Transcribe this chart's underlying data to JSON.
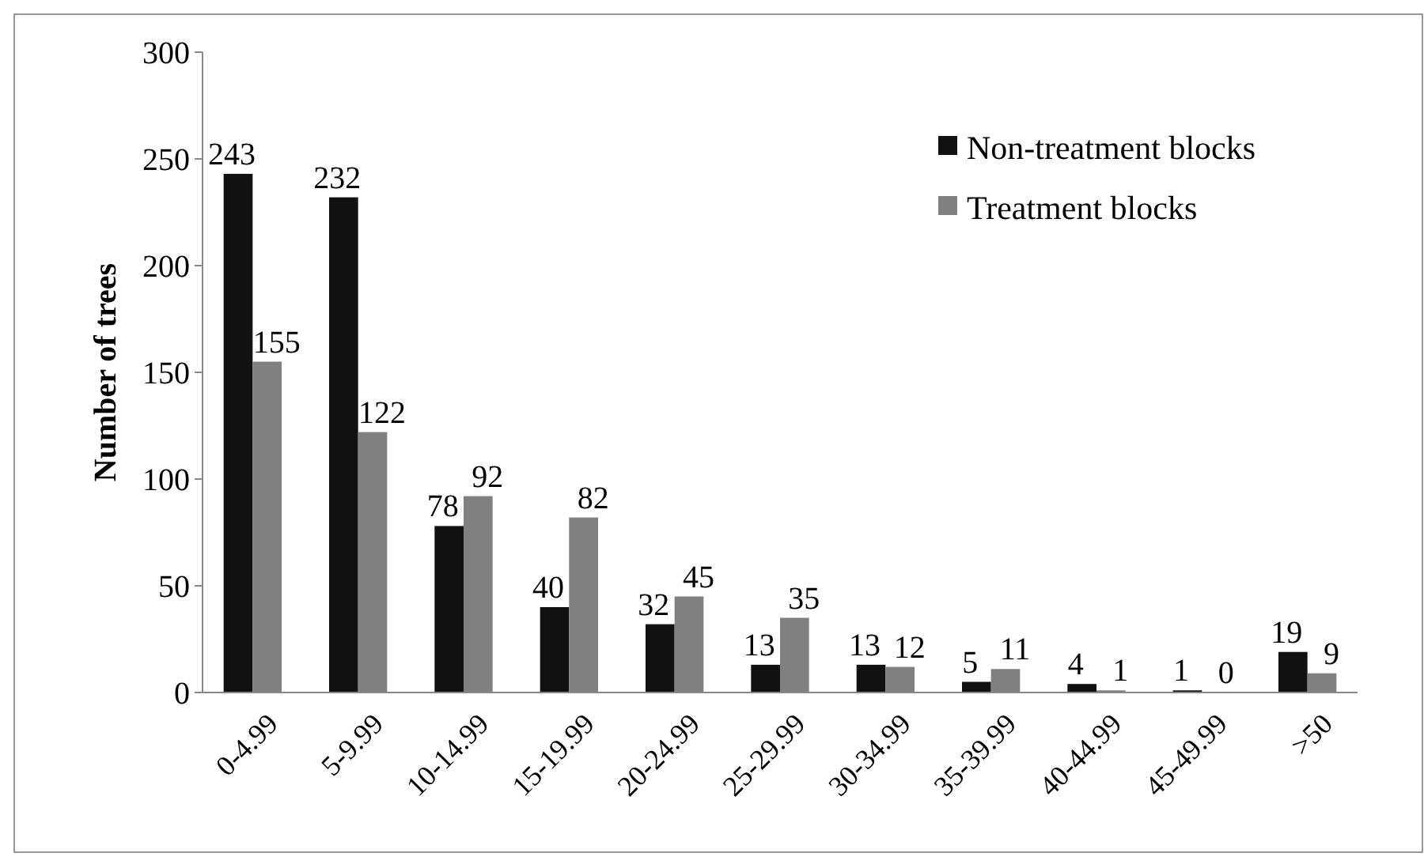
{
  "chart_data": {
    "type": "bar",
    "ylabel": "Number of trees",
    "categories": [
      "0-4.99",
      "5-9.99",
      "10-14.99",
      "15-19.99",
      "20-24.99",
      "25-29.99",
      "30-34.99",
      "35-39.99",
      "40-44.99",
      "45-49.99",
      ">50"
    ],
    "series": [
      {
        "name": "Non-treatment blocks",
        "color": "#111111",
        "values": [
          243,
          232,
          78,
          40,
          32,
          13,
          13,
          5,
          4,
          1,
          19
        ]
      },
      {
        "name": "Treatment blocks",
        "color": "#808080",
        "values": [
          155,
          122,
          92,
          82,
          45,
          35,
          12,
          11,
          1,
          0,
          9
        ]
      }
    ],
    "ylim": [
      0,
      300
    ],
    "yticks": [
      0,
      50,
      100,
      150,
      200,
      250,
      300
    ],
    "data_labels": true,
    "legend": "top right",
    "grid": false
  }
}
